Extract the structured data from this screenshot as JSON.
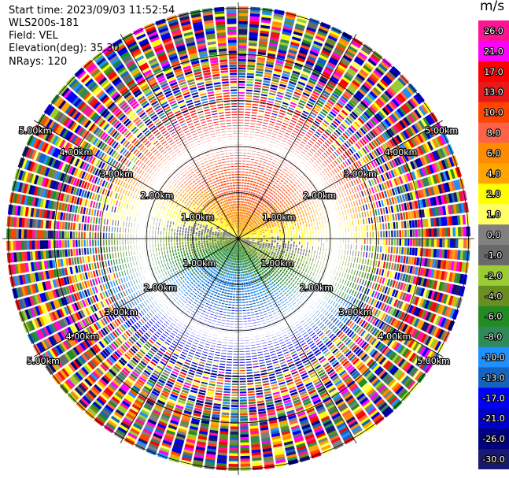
{
  "header": {
    "start_time": "Start time: 2023/09/03 11:52:54",
    "instrument": "WLS200s-181",
    "field": "Field: VEL",
    "elevation": "Elevation(deg): 35.30",
    "nrays": "NRays: 120"
  },
  "ppi": {
    "range_rings": [
      {
        "label": "1.00km"
      },
      {
        "label": "2.00km"
      },
      {
        "label": "3.00km"
      },
      {
        "label": "4.00km"
      },
      {
        "label": "5.00km"
      }
    ]
  },
  "colorbar": {
    "unit": "m/s",
    "levels": [
      {
        "label": "26.0",
        "color": "#ff1493"
      },
      {
        "label": "21.0",
        "color": "#ff00ff"
      },
      {
        "label": "17.0",
        "color": "#ff0000"
      },
      {
        "label": "13.0",
        "color": "#e8191a"
      },
      {
        "label": "10.0",
        "color": "#ff4500"
      },
      {
        "label": "8.0",
        "color": "#ff6347"
      },
      {
        "label": "6.0",
        "color": "#ff8c00"
      },
      {
        "label": "4.0",
        "color": "#ffa500"
      },
      {
        "label": "2.0",
        "color": "#ffff00"
      },
      {
        "label": "1.0",
        "color": "#ffff66"
      },
      {
        "label": "0.0",
        "color": "#808080"
      },
      {
        "label": "-1.0",
        "color": "#696969"
      },
      {
        "label": "-2.0",
        "color": "#9acd32"
      },
      {
        "label": "-4.0",
        "color": "#6b8e23"
      },
      {
        "label": "-6.0",
        "color": "#228b22"
      },
      {
        "label": "-8.0",
        "color": "#2e8b57"
      },
      {
        "label": "-10.0",
        "color": "#1e90ff"
      },
      {
        "label": "-13.0",
        "color": "#1565c0"
      },
      {
        "label": "-17.0",
        "color": "#0000ff"
      },
      {
        "label": "-21.0",
        "color": "#0000cd"
      },
      {
        "label": "-26.0",
        "color": "#000080"
      },
      {
        "label": "-30.0",
        "color": "#191970"
      }
    ]
  }
}
